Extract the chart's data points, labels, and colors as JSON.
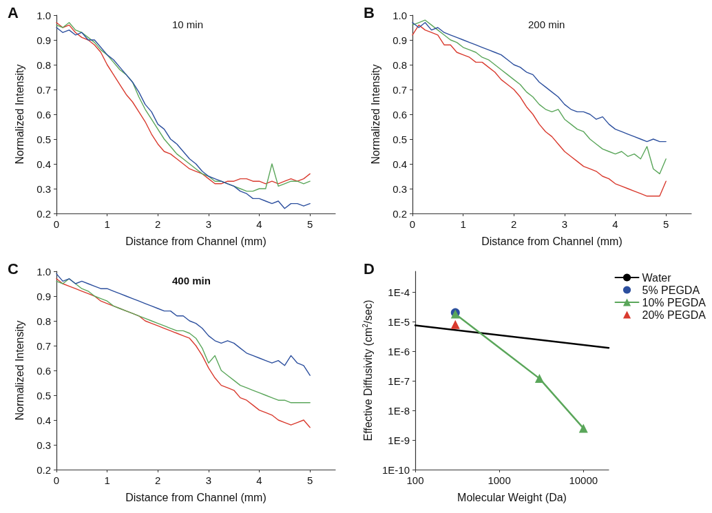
{
  "chart_data": [
    {
      "type": "line",
      "title": "A",
      "annotations": [
        "10 min"
      ],
      "xlabel": "Distance from Channel (mm)",
      "ylabel": "Normalized Intensity",
      "xlim": [
        0,
        5.5
      ],
      "xticks": [
        0,
        1,
        2,
        3,
        4,
        5
      ],
      "ylim": [
        0.2,
        1.0
      ],
      "yticks": [
        0.2,
        0.3,
        0.4,
        0.5,
        0.6,
        0.7,
        0.8,
        0.9,
        {
          "value": 1.0,
          "label": "1.0"
        }
      ],
      "grid": false,
      "legend": false,
      "marker": "none",
      "line_style": "solid",
      "x": [
        0,
        0.125,
        0.25,
        0.375,
        0.5,
        0.625,
        0.75,
        0.875,
        1,
        1.125,
        1.25,
        1.375,
        1.5,
        1.625,
        1.75,
        1.875,
        2,
        2.125,
        2.25,
        2.375,
        2.5,
        2.625,
        2.75,
        2.875,
        3,
        3.125,
        3.25,
        3.375,
        3.5,
        3.625,
        3.75,
        3.875,
        4,
        4.125,
        4.25,
        4.375,
        4.5,
        4.625,
        4.75,
        4.875,
        5
      ],
      "series": [
        {
          "color": "#d93a2e",
          "values": [
            0.97,
            0.95,
            0.96,
            0.93,
            0.91,
            0.9,
            0.88,
            0.85,
            0.8,
            0.76,
            0.72,
            0.68,
            0.65,
            0.61,
            0.57,
            0.52,
            0.48,
            0.45,
            0.44,
            0.42,
            0.4,
            0.38,
            0.37,
            0.36,
            0.34,
            0.32,
            0.32,
            0.33,
            0.33,
            0.34,
            0.34,
            0.33,
            0.33,
            0.32,
            0.33,
            0.32,
            0.33,
            0.34,
            0.33,
            0.34,
            0.36
          ]
        },
        {
          "color": "#5aa65a",
          "values": [
            0.96,
            0.95,
            0.97,
            0.94,
            0.93,
            0.91,
            0.89,
            0.86,
            0.84,
            0.81,
            0.78,
            0.76,
            0.73,
            0.67,
            0.62,
            0.58,
            0.54,
            0.5,
            0.47,
            0.44,
            0.42,
            0.4,
            0.38,
            0.36,
            0.35,
            0.33,
            0.33,
            0.32,
            0.31,
            0.3,
            0.29,
            0.29,
            0.3,
            0.3,
            0.4,
            0.31,
            0.32,
            0.33,
            0.33,
            0.32,
            0.33
          ]
        },
        {
          "color": "#2c4f9e",
          "values": [
            0.95,
            0.93,
            0.94,
            0.92,
            0.93,
            0.9,
            0.9,
            0.87,
            0.84,
            0.82,
            0.79,
            0.76,
            0.73,
            0.69,
            0.64,
            0.61,
            0.56,
            0.54,
            0.5,
            0.48,
            0.45,
            0.42,
            0.4,
            0.37,
            0.35,
            0.34,
            0.33,
            0.32,
            0.31,
            0.29,
            0.28,
            0.26,
            0.26,
            0.25,
            0.24,
            0.25,
            0.22,
            0.24,
            0.24,
            0.23,
            0.24
          ]
        }
      ]
    },
    {
      "type": "line",
      "title": "B",
      "annotations": [
        "200 min"
      ],
      "xlabel": "Distance from Channel (mm)",
      "ylabel": "Normalized Intensity",
      "xlim": [
        0,
        5.5
      ],
      "xticks": [
        0,
        1,
        2,
        3,
        4,
        5
      ],
      "ylim": [
        0.2,
        1.0
      ],
      "yticks": [
        0.2,
        0.3,
        0.4,
        0.5,
        0.6,
        0.7,
        0.8,
        0.9,
        {
          "value": 1.0,
          "label": "1.0"
        }
      ],
      "grid": false,
      "legend": false,
      "marker": "none",
      "line_style": "solid",
      "x": [
        0,
        0.125,
        0.25,
        0.375,
        0.5,
        0.625,
        0.75,
        0.875,
        1,
        1.125,
        1.25,
        1.375,
        1.5,
        1.625,
        1.75,
        1.875,
        2,
        2.125,
        2.25,
        2.375,
        2.5,
        2.625,
        2.75,
        2.875,
        3,
        3.125,
        3.25,
        3.375,
        3.5,
        3.625,
        3.75,
        3.875,
        4,
        4.125,
        4.25,
        4.375,
        4.5,
        4.625,
        4.75,
        4.875,
        5
      ],
      "series": [
        {
          "color": "#d93a2e",
          "values": [
            0.92,
            0.96,
            0.94,
            0.93,
            0.92,
            0.88,
            0.88,
            0.85,
            0.84,
            0.83,
            0.81,
            0.81,
            0.79,
            0.77,
            0.74,
            0.72,
            0.7,
            0.67,
            0.63,
            0.6,
            0.56,
            0.53,
            0.51,
            0.48,
            0.45,
            0.43,
            0.41,
            0.39,
            0.38,
            0.37,
            0.35,
            0.34,
            0.32,
            0.31,
            0.3,
            0.29,
            0.28,
            0.27,
            0.27,
            0.27,
            0.33
          ]
        },
        {
          "color": "#5aa65a",
          "values": [
            0.96,
            0.97,
            0.98,
            0.96,
            0.94,
            0.92,
            0.9,
            0.89,
            0.87,
            0.86,
            0.85,
            0.83,
            0.82,
            0.8,
            0.78,
            0.76,
            0.74,
            0.72,
            0.69,
            0.67,
            0.64,
            0.62,
            0.61,
            0.62,
            0.58,
            0.56,
            0.54,
            0.53,
            0.5,
            0.48,
            0.46,
            0.45,
            0.44,
            0.45,
            0.43,
            0.44,
            0.42,
            0.47,
            0.38,
            0.36,
            0.42
          ]
        },
        {
          "color": "#2c4f9e",
          "values": [
            0.97,
            0.95,
            0.97,
            0.94,
            0.95,
            0.93,
            0.92,
            0.91,
            0.9,
            0.89,
            0.88,
            0.87,
            0.86,
            0.85,
            0.84,
            0.82,
            0.8,
            0.79,
            0.77,
            0.76,
            0.73,
            0.71,
            0.69,
            0.67,
            0.64,
            0.62,
            0.61,
            0.61,
            0.6,
            0.58,
            0.59,
            0.56,
            0.54,
            0.53,
            0.52,
            0.51,
            0.5,
            0.49,
            0.5,
            0.49,
            0.49
          ]
        }
      ]
    },
    {
      "type": "line",
      "title": "C",
      "annotations": [
        "400 min"
      ],
      "xlabel": "Distance from Channel (mm)",
      "ylabel": "Normalized Intensity",
      "xlim": [
        0,
        5.5
      ],
      "xticks": [
        0,
        1,
        2,
        3,
        4,
        5
      ],
      "ylim": [
        0.2,
        1.0
      ],
      "yticks": [
        0.2,
        0.3,
        0.4,
        0.5,
        0.6,
        0.7,
        0.8,
        0.9,
        {
          "value": 1.0,
          "label": "1.0"
        }
      ],
      "grid": false,
      "legend": false,
      "marker": "none",
      "line_style": "solid",
      "x": [
        0,
        0.125,
        0.25,
        0.375,
        0.5,
        0.625,
        0.75,
        0.875,
        1,
        1.125,
        1.25,
        1.375,
        1.5,
        1.625,
        1.75,
        1.875,
        2,
        2.125,
        2.25,
        2.375,
        2.5,
        2.625,
        2.75,
        2.875,
        3,
        3.125,
        3.25,
        3.375,
        3.5,
        3.625,
        3.75,
        3.875,
        4,
        4.125,
        4.25,
        4.375,
        4.5,
        4.625,
        4.75,
        4.875,
        5
      ],
      "series": [
        {
          "color": "#d93a2e",
          "values": [
            0.97,
            0.95,
            0.94,
            0.93,
            0.92,
            0.91,
            0.9,
            0.88,
            0.87,
            0.86,
            0.85,
            0.84,
            0.83,
            0.82,
            0.8,
            0.79,
            0.78,
            0.77,
            0.76,
            0.75,
            0.74,
            0.73,
            0.7,
            0.66,
            0.61,
            0.57,
            0.54,
            0.53,
            0.52,
            0.49,
            0.48,
            0.46,
            0.44,
            0.43,
            0.42,
            0.4,
            0.39,
            0.38,
            0.39,
            0.4,
            0.37
          ]
        },
        {
          "color": "#5aa65a",
          "values": [
            0.96,
            0.95,
            0.97,
            0.95,
            0.93,
            0.92,
            0.9,
            0.89,
            0.88,
            0.86,
            0.85,
            0.84,
            0.83,
            0.82,
            0.81,
            0.8,
            0.79,
            0.78,
            0.77,
            0.76,
            0.76,
            0.75,
            0.73,
            0.69,
            0.63,
            0.66,
            0.6,
            0.58,
            0.56,
            0.54,
            0.53,
            0.52,
            0.51,
            0.5,
            0.49,
            0.48,
            0.48,
            0.47,
            0.47,
            0.47,
            0.47
          ]
        },
        {
          "color": "#2c4f9e",
          "values": [
            0.99,
            0.96,
            0.97,
            0.95,
            0.96,
            0.95,
            0.94,
            0.93,
            0.93,
            0.92,
            0.91,
            0.9,
            0.89,
            0.88,
            0.87,
            0.86,
            0.85,
            0.84,
            0.84,
            0.82,
            0.82,
            0.8,
            0.79,
            0.77,
            0.74,
            0.72,
            0.71,
            0.72,
            0.71,
            0.69,
            0.67,
            0.66,
            0.65,
            0.64,
            0.63,
            0.64,
            0.62,
            0.66,
            0.63,
            0.62,
            0.58
          ]
        }
      ]
    },
    {
      "type": "line",
      "title": "D",
      "xlabel": "Molecular Weight (Da)",
      "ylabel": "Effective Diffusivity (cm$^{2}$/sec)",
      "log": "xy",
      "xlim": [
        100,
        20000
      ],
      "xticks": [
        100,
        1000,
        10000
      ],
      "ylim": [
        1e-10,
        0.0005
      ],
      "yticks": [
        {
          "value": 1e-10,
          "label": "1E-10"
        },
        {
          "value": 1e-09,
          "label": "1E-9"
        },
        {
          "value": 1e-08,
          "label": "1E-8"
        },
        {
          "value": 1e-07,
          "label": "1E-7"
        },
        {
          "value": 1e-06,
          "label": "1E-6"
        },
        {
          "value": 1e-05,
          "label": "1E-5"
        },
        {
          "value": 0.0001,
          "label": "1E-4"
        }
      ],
      "grid": false,
      "legend": "top right",
      "line_style": "solid",
      "series": [
        {
          "name": "Water",
          "color": "#000000",
          "marker": "none",
          "x": [
            100,
            20000
          ],
          "values": [
            7.5e-06,
            1.3e-06
          ]
        },
        {
          "name": "5% PEGDA",
          "color": "#2c4f9e",
          "marker": "circle",
          "x": [
            300
          ],
          "values": [
            2e-05
          ]
        },
        {
          "name": "10% PEGDA",
          "color": "#5aa65a",
          "marker": "triangle",
          "x": [
            300,
            3000,
            10000
          ],
          "values": [
            1.8e-05,
            1.2e-07,
            2.5e-09
          ]
        },
        {
          "name": "20% PEGDA",
          "color": "#d93a2e",
          "marker": "triangle",
          "x": [
            300
          ],
          "values": [
            8e-06
          ]
        }
      ]
    }
  ]
}
